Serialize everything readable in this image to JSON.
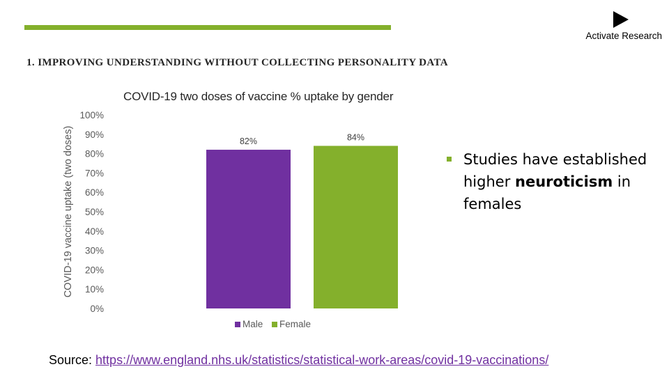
{
  "header": {
    "logo_text": "Activate Research",
    "section_title": "1. IMPROVING UNDERSTANDING WITHOUT COLLECTING PERSONALITY DATA"
  },
  "bullet": {
    "text_before": "Studies have established higher ",
    "bold": "neuroticism",
    "text_after": " in females"
  },
  "source": {
    "label": "Source: ",
    "url": "https://www.england.nhs.uk/statistics/statistical-work-areas/covid-19-vaccinations/"
  },
  "colors": {
    "accent": "#84b02c",
    "male": "#7030a0",
    "female": "#84b02c"
  },
  "chart_data": {
    "type": "bar",
    "title": "COVID-19 two doses of vaccine % uptake by gender",
    "ylabel": "COVID-19 vaccine uptake (two doses)",
    "xlabel": "",
    "ylim": [
      0,
      100
    ],
    "yticks": [
      0,
      10,
      20,
      30,
      40,
      50,
      60,
      70,
      80,
      90,
      100
    ],
    "ytick_suffix": "%",
    "grid": false,
    "legend_position": "bottom",
    "series": [
      {
        "name": "Male",
        "value": 82,
        "label": "82%",
        "color": "#7030a0"
      },
      {
        "name": "Female",
        "value": 84,
        "label": "84%",
        "color": "#84b02c"
      }
    ]
  }
}
